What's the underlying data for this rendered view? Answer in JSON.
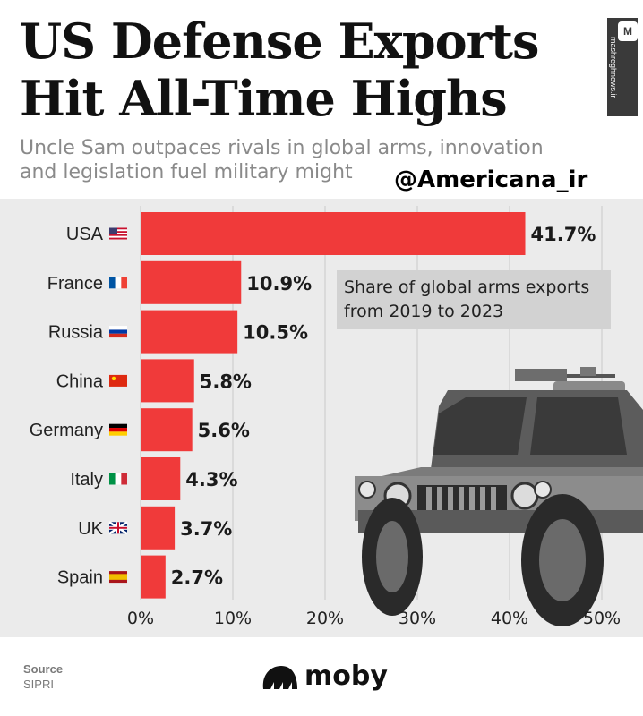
{
  "header": {
    "title_line1": "US Defense Exports",
    "title_line2": "Hit All-Time Highs",
    "subtitle_line1": "Uncle Sam outpaces rivals in global arms, innovation",
    "subtitle_line2": "and legislation fuel military might",
    "handle": "@Americana_ir",
    "watermark": "mashreghnews.ir",
    "watermark_logo": "M"
  },
  "note": {
    "line1": "Share of global arms exports",
    "line2": "from 2019 to 2023"
  },
  "colors": {
    "bar": "#f03a3a",
    "background": "#ebebeb",
    "grid": "#c9c9c9"
  },
  "chart_data": {
    "type": "bar",
    "orientation": "horizontal",
    "title": "US Defense Exports Hit All-Time Highs",
    "subtitle": "Uncle Sam outpaces rivals in global arms, innovation and legislation fuel military might",
    "annotation": "Share of global arms exports from 2019 to 2023",
    "categories": [
      "USA",
      "France",
      "Russia",
      "China",
      "Germany",
      "Italy",
      "UK",
      "Spain"
    ],
    "values": [
      41.7,
      10.9,
      10.5,
      5.8,
      5.6,
      4.3,
      3.7,
      2.7
    ],
    "value_labels": [
      "41.7%",
      "10.9%",
      "10.5%",
      "5.8%",
      "5.6%",
      "4.3%",
      "3.7%",
      "2.7%"
    ],
    "xlim": [
      0,
      50
    ],
    "xticks": [
      0,
      10,
      20,
      30,
      40,
      50
    ],
    "xtick_labels": [
      "0%",
      "10%",
      "20%",
      "30%",
      "40%",
      "50%"
    ],
    "xlabel": "",
    "ylabel": "",
    "grid": true
  },
  "footer": {
    "source_label": "Source",
    "source_value": "SIPRI",
    "brand": "moby"
  }
}
